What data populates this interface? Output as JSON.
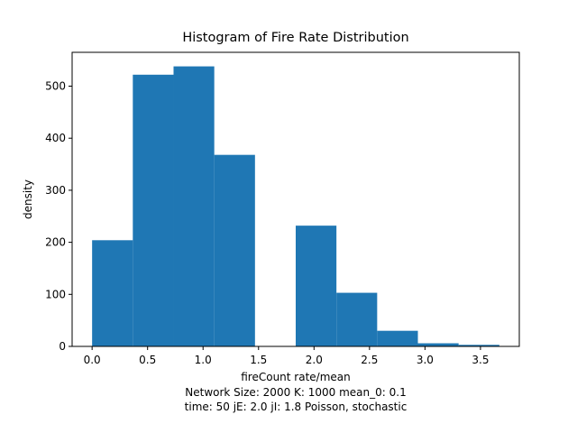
{
  "chart_data": {
    "type": "bar",
    "title": "Histogram of Fire Rate Distribution",
    "xlabel": "fireCount rate/mean",
    "ylabel": "density",
    "caption_lines": [
      "Network Size: 2000  K: 1000  mean_0: 0.1",
      "time: 50   jE: 2.0   jI: 1.8  Poisson, stochastic"
    ],
    "bin_edges": [
      0.0,
      0.367,
      0.734,
      1.101,
      1.468,
      1.835,
      2.202,
      2.569,
      2.936,
      3.303,
      3.67
    ],
    "values": [
      204,
      522,
      538,
      368,
      0,
      232,
      103,
      30,
      6,
      3
    ],
    "xlim": [
      -0.18,
      3.85
    ],
    "ylim": [
      0,
      565
    ],
    "xticks": [
      "0.0",
      "0.5",
      "1.0",
      "1.5",
      "2.0",
      "2.5",
      "3.0",
      "3.5"
    ],
    "xtick_values": [
      0.0,
      0.5,
      1.0,
      1.5,
      2.0,
      2.5,
      3.0,
      3.5
    ],
    "yticks": [
      "0",
      "100",
      "200",
      "300",
      "400",
      "500"
    ],
    "ytick_values": [
      0,
      100,
      200,
      300,
      400,
      500
    ],
    "bar_color": "#1f77b4",
    "grid": false
  }
}
